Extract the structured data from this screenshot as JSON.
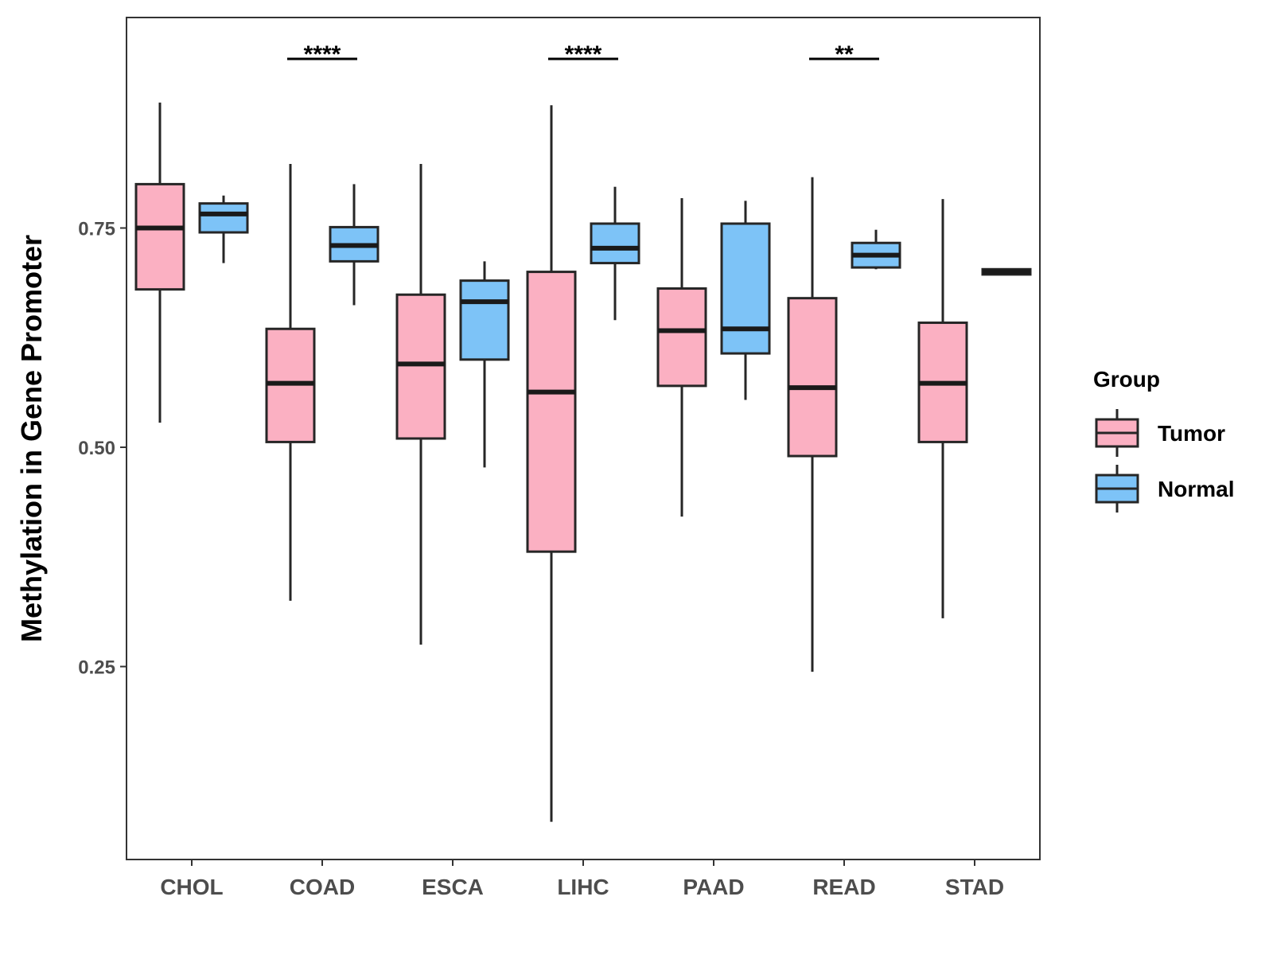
{
  "chart_data": {
    "type": "boxplot",
    "ylabel": "Methylation in Gene Promoter",
    "xlabel": "",
    "ylim": [
      0.03,
      0.99
    ],
    "yticks": [
      0.25,
      0.5,
      0.75
    ],
    "ytick_labels": [
      "0.25",
      "0.50",
      "0.75"
    ],
    "categories": [
      "CHOL",
      "COAD",
      "ESCA",
      "LIHC",
      "PAAD",
      "READ",
      "STAD"
    ],
    "legend": {
      "title": "Group",
      "position": "right"
    },
    "series": [
      {
        "name": "Tumor",
        "color": "#FBB0C2",
        "boxes": [
          {
            "min": 0.528,
            "q1": 0.68,
            "median": 0.75,
            "q3": 0.8,
            "max": 0.893
          },
          {
            "min": 0.325,
            "q1": 0.506,
            "median": 0.573,
            "q3": 0.635,
            "max": 0.823
          },
          {
            "min": 0.275,
            "q1": 0.51,
            "median": 0.595,
            "q3": 0.674,
            "max": 0.823
          },
          {
            "min": 0.073,
            "q1": 0.381,
            "median": 0.563,
            "q3": 0.7,
            "max": 0.89
          },
          {
            "min": 0.421,
            "q1": 0.57,
            "median": 0.633,
            "q3": 0.681,
            "max": 0.784
          },
          {
            "min": 0.244,
            "q1": 0.49,
            "median": 0.568,
            "q3": 0.67,
            "max": 0.808
          },
          {
            "min": 0.305,
            "q1": 0.506,
            "median": 0.573,
            "q3": 0.642,
            "max": 0.783
          }
        ]
      },
      {
        "name": "Normal",
        "color": "#7DC3F7",
        "boxes": [
          {
            "min": 0.71,
            "q1": 0.745,
            "median": 0.766,
            "q3": 0.778,
            "max": 0.787
          },
          {
            "min": 0.662,
            "q1": 0.712,
            "median": 0.73,
            "q3": 0.751,
            "max": 0.8
          },
          {
            "min": 0.477,
            "q1": 0.6,
            "median": 0.666,
            "q3": 0.69,
            "max": 0.712
          },
          {
            "min": 0.645,
            "q1": 0.71,
            "median": 0.727,
            "q3": 0.755,
            "max": 0.797
          },
          {
            "min": 0.554,
            "q1": 0.607,
            "median": 0.635,
            "q3": 0.755,
            "max": 0.781
          },
          {
            "min": 0.703,
            "q1": 0.705,
            "median": 0.719,
            "q3": 0.733,
            "max": 0.748
          },
          {
            "min": 0.697,
            "q1": 0.697,
            "median": 0.7,
            "q3": 0.703,
            "max": 0.703
          }
        ]
      }
    ],
    "significance": [
      {
        "category": "COAD",
        "label": "****"
      },
      {
        "category": "LIHC",
        "label": "****"
      },
      {
        "category": "READ",
        "label": "**"
      }
    ]
  }
}
